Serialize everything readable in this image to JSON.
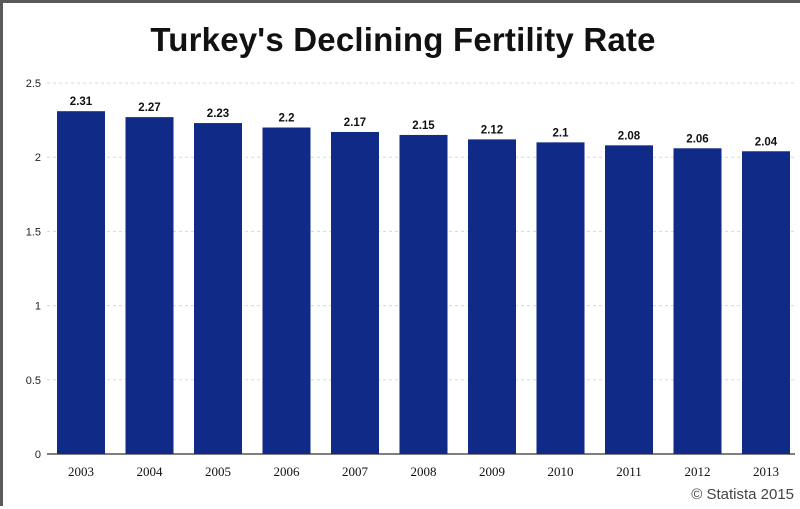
{
  "chart_data": {
    "type": "bar",
    "title": "Turkey's Declining Fertility Rate",
    "xlabel": "",
    "ylabel": "",
    "categories": [
      "2003",
      "2004",
      "2005",
      "2006",
      "2007",
      "2008",
      "2009",
      "2010",
      "2011",
      "2012",
      "2013"
    ],
    "values": [
      2.31,
      2.27,
      2.23,
      2.2,
      2.17,
      2.15,
      2.12,
      2.1,
      2.08,
      2.06,
      2.04
    ],
    "value_labels": [
      "2.31",
      "2.27",
      "2.23",
      "2.2",
      "2.17",
      "2.15",
      "2.12",
      "2.1",
      "2.08",
      "2.06",
      "2.04"
    ],
    "ylim": [
      0,
      2.5
    ],
    "yticks": [
      0,
      0.5,
      1,
      1.5,
      2,
      2.5
    ],
    "ytick_labels": [
      "0",
      "0.5",
      "1",
      "1.5",
      "2",
      "2.5"
    ],
    "grid": true,
    "legend": "none",
    "bar_color": "#0f2a87",
    "grid_color": "#d8d8d8"
  },
  "credit": "© Statista 2015"
}
